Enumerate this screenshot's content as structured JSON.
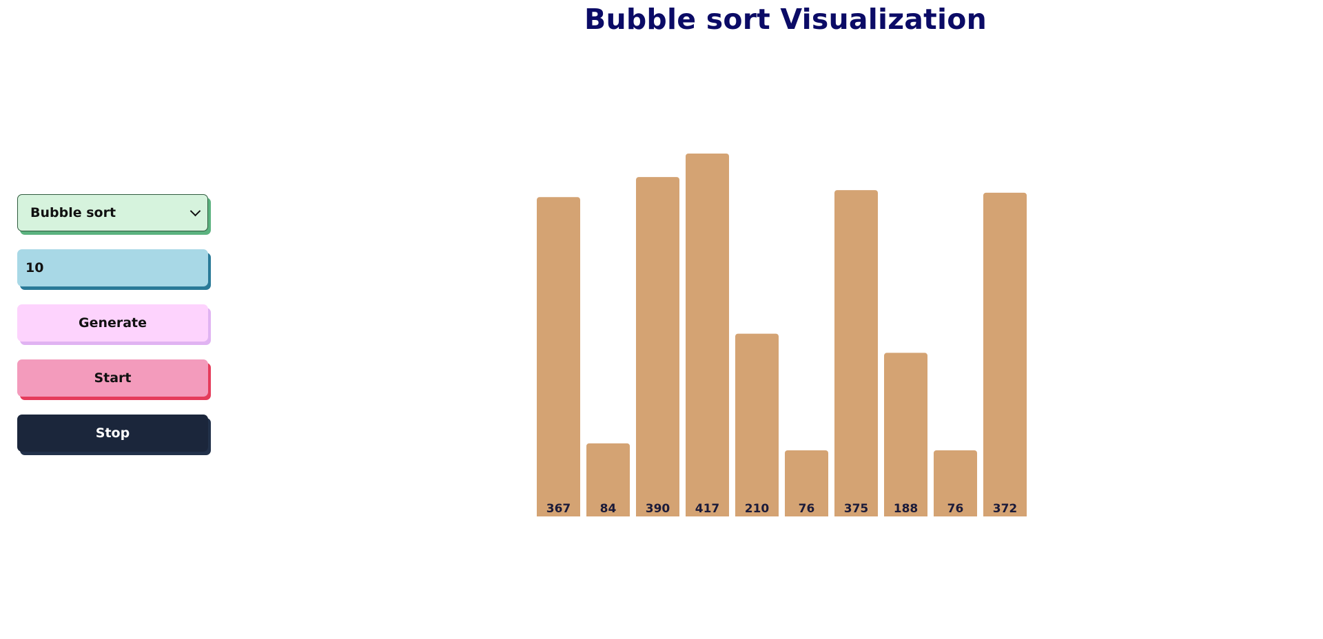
{
  "title": "Bubble sort Visualization",
  "controls": {
    "algorithm_selected": "Bubble sort",
    "array_size_value": "10",
    "generate_label": "Generate",
    "start_label": "Start",
    "stop_label": "Stop"
  },
  "colors": {
    "bar": "#d4a373",
    "bar_label": "#1b1b3a",
    "title": "#0b0b66"
  },
  "chart_data": {
    "type": "bar",
    "categories": [
      "367",
      "84",
      "390",
      "417",
      "210",
      "76",
      "375",
      "188",
      "76",
      "372"
    ],
    "values": [
      367,
      84,
      390,
      417,
      210,
      76,
      375,
      188,
      76,
      372
    ],
    "title": "",
    "xlabel": "",
    "ylabel": "",
    "ylim": [
      0,
      417
    ],
    "grid": false
  }
}
